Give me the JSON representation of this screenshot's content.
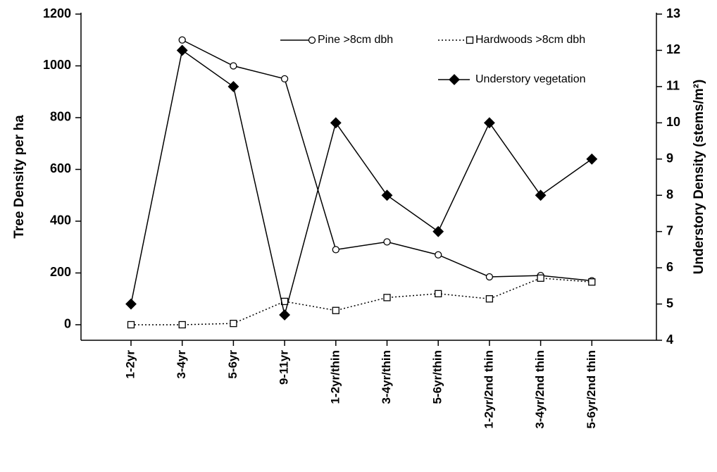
{
  "chart_data": {
    "type": "line",
    "y_label": "Tree Density per ha",
    "y2_label": "Understory Density (stems/m²)",
    "categories": [
      "1-2yr",
      "3-4yr",
      "5-6yr",
      "9-11yr",
      "1-2yr/thin",
      "3-4yr/thin",
      "5-6yr/thin",
      "1-2yr/2nd thin",
      "3-4yr/2nd thin",
      "5-6yr/2nd thin"
    ],
    "series": [
      {
        "name": "Pine >8cm dbh",
        "color": "#000000",
        "marker": "circle",
        "style": "solid",
        "values": [
          null,
          1100,
          1000,
          950,
          290,
          320,
          270,
          185,
          190,
          170
        ]
      },
      {
        "name": "Hardwoods >8cm dbh",
        "color": "#000000",
        "marker": "square",
        "style": "dotted",
        "values": [
          0,
          0,
          5,
          90,
          55,
          105,
          120,
          100,
          180,
          165
        ]
      },
      {
        "name": "Understory vegetation",
        "color": "#000000",
        "marker": "diamond",
        "style": "solid",
        "axis": "y2",
        "values": [
          5,
          12,
          11,
          4.7,
          10,
          8,
          7,
          10,
          8,
          9
        ]
      }
    ],
    "ylim": [
      -60,
      1200
    ],
    "yticks": [
      0,
      200,
      400,
      600,
      800,
      1000,
      1200
    ],
    "y2lim": [
      4,
      13
    ],
    "y2ticks": [
      4,
      5,
      6,
      7,
      8,
      9,
      10,
      11,
      12,
      13
    ]
  }
}
